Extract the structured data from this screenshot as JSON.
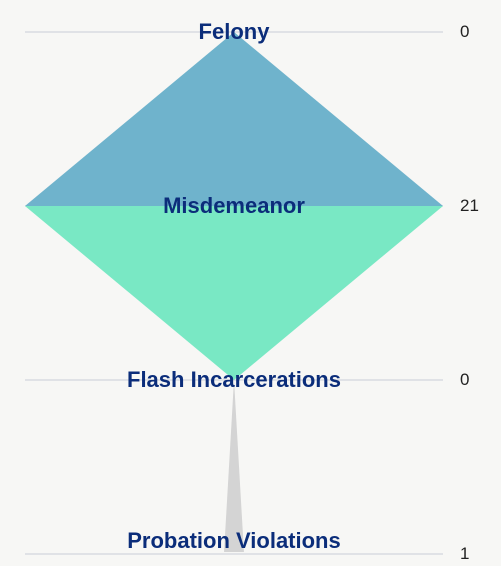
{
  "chart_data": {
    "type": "funnel",
    "categories": [
      "Felony",
      "Misdemeanor",
      "Flash Incarcerations",
      "Probation Violations"
    ],
    "values": [
      0,
      21,
      0,
      1
    ],
    "colors": [
      "#6fb3cc",
      "#79e8c4",
      "#d4d4d4"
    ]
  }
}
